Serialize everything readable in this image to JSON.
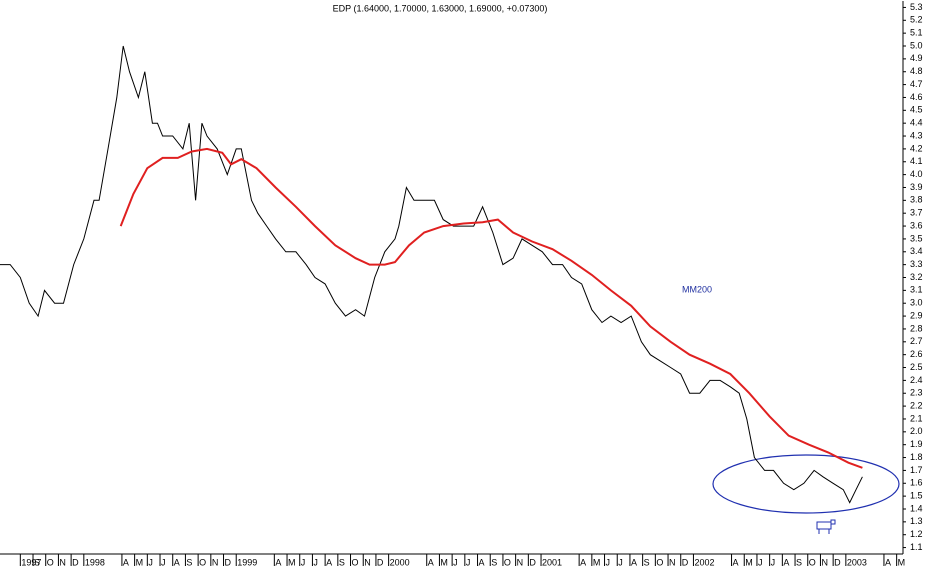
{
  "chart_data": {
    "type": "line",
    "title": "EDP (1.64000, 1.70000, 1.63000, 1.69000, +0.07300)",
    "annotations": [
      "MM200"
    ],
    "xlim": [
      -6.6,
      64.5
    ],
    "ylim": [
      1.05,
      5.35
    ],
    "xticks": [
      {
        "value": -5,
        "label": "1997"
      },
      {
        "value": -4,
        "label": "S"
      },
      {
        "value": -3,
        "label": "O"
      },
      {
        "value": -2,
        "label": "N"
      },
      {
        "value": -1,
        "label": "D"
      },
      {
        "value": 0,
        "label": "1998"
      },
      {
        "value": 3,
        "label": "A"
      },
      {
        "value": 4,
        "label": "M"
      },
      {
        "value": 5,
        "label": "J"
      },
      {
        "value": 6,
        "label": "J"
      },
      {
        "value": 7,
        "label": "A"
      },
      {
        "value": 8,
        "label": "S"
      },
      {
        "value": 9,
        "label": "O"
      },
      {
        "value": 10,
        "label": "N"
      },
      {
        "value": 11,
        "label": "D"
      },
      {
        "value": 12,
        "label": "1999"
      },
      {
        "value": 15,
        "label": "A"
      },
      {
        "value": 16,
        "label": "M"
      },
      {
        "value": 17,
        "label": "J"
      },
      {
        "value": 18,
        "label": "J"
      },
      {
        "value": 19,
        "label": "A"
      },
      {
        "value": 20,
        "label": "S"
      },
      {
        "value": 21,
        "label": "O"
      },
      {
        "value": 22,
        "label": "N"
      },
      {
        "value": 23,
        "label": "D"
      },
      {
        "value": 24,
        "label": "2000"
      },
      {
        "value": 27,
        "label": "A"
      },
      {
        "value": 28,
        "label": "M"
      },
      {
        "value": 29,
        "label": "J"
      },
      {
        "value": 30,
        "label": "J"
      },
      {
        "value": 31,
        "label": "A"
      },
      {
        "value": 32,
        "label": "S"
      },
      {
        "value": 33,
        "label": "O"
      },
      {
        "value": 34,
        "label": "N"
      },
      {
        "value": 35,
        "label": "D"
      },
      {
        "value": 36,
        "label": "2001"
      },
      {
        "value": 39,
        "label": "A"
      },
      {
        "value": 40,
        "label": "M"
      },
      {
        "value": 41,
        "label": "J"
      },
      {
        "value": 42,
        "label": "J"
      },
      {
        "value": 43,
        "label": "A"
      },
      {
        "value": 44,
        "label": "S"
      },
      {
        "value": 45,
        "label": "O"
      },
      {
        "value": 46,
        "label": "N"
      },
      {
        "value": 47,
        "label": "D"
      },
      {
        "value": 48,
        "label": "2002"
      },
      {
        "value": 51,
        "label": "A"
      },
      {
        "value": 52,
        "label": "M"
      },
      {
        "value": 53,
        "label": "J"
      },
      {
        "value": 54,
        "label": "J"
      },
      {
        "value": 55,
        "label": "A"
      },
      {
        "value": 56,
        "label": "S"
      },
      {
        "value": 57,
        "label": "O"
      },
      {
        "value": 58,
        "label": "N"
      },
      {
        "value": 59,
        "label": "D"
      },
      {
        "value": 60,
        "label": "2003"
      },
      {
        "value": 63,
        "label": "A"
      },
      {
        "value": 64,
        "label": "M"
      }
    ],
    "yticks": [
      1.1,
      1.2,
      1.3,
      1.4,
      1.5,
      1.6,
      1.7,
      1.8,
      1.9,
      {
        "value": 2.0,
        "label": "2.0"
      },
      2.1,
      2.2,
      2.3,
      2.4,
      2.5,
      2.6,
      2.7,
      2.8,
      2.9,
      {
        "value": 3.0,
        "label": "3.0"
      },
      3.1,
      3.2,
      3.3,
      3.4,
      3.5,
      3.6,
      3.7,
      3.8,
      3.9,
      {
        "value": 4.0,
        "label": "4.0"
      },
      4.1,
      4.2,
      4.3,
      4.4,
      4.5,
      4.6,
      4.7,
      4.8,
      4.9,
      {
        "value": 5.0,
        "label": "5.0"
      },
      5.1,
      5.2,
      5.3
    ],
    "grid": false,
    "series": [
      {
        "color": "#000000",
        "x": [
          -6.6,
          -5.8,
          -5.0,
          -4.3,
          -3.6,
          -3.1,
          -2.3,
          -1.6,
          -0.8,
          0,
          0.8,
          1.2,
          1.9,
          2.6,
          3.1,
          3.6,
          4.3,
          4.8,
          5.4,
          5.8,
          6.2,
          7.0,
          7.8,
          8.3,
          8.8,
          9.3,
          9.7,
          10.5,
          11.3,
          12.0,
          12.4,
          13.2,
          13.7,
          14.4,
          15.1,
          15.9,
          16.7,
          17.5,
          18.2,
          19.0,
          19.8,
          20.6,
          21.4,
          22.1,
          22.9,
          23.7,
          24.5,
          24.8,
          25.4,
          26.0,
          26.8,
          27.6,
          28.3,
          29.1,
          29.9,
          30.7,
          31.4,
          32.2,
          33.0,
          33.8,
          34.5,
          35.3,
          36.1,
          36.9,
          37.7,
          38.4,
          39.2,
          40.0,
          40.8,
          41.5,
          42.3,
          43.1,
          43.9,
          44.6,
          45.4,
          46.2,
          47.0,
          47.7,
          48.5,
          49.3,
          50.1,
          50.9,
          51.6,
          52.2,
          52.8,
          53.6,
          54.3,
          55.1,
          55.9,
          56.7,
          57.5,
          58.2,
          59.0,
          59.8,
          60.3,
          60.8,
          61.3
        ],
        "values": [
          3.3,
          3.3,
          3.2,
          3.0,
          2.9,
          3.1,
          3.0,
          3.0,
          3.3,
          3.5,
          3.8,
          3.8,
          4.2,
          4.6,
          5.0,
          4.8,
          4.6,
          4.8,
          4.4,
          4.4,
          4.3,
          4.3,
          4.2,
          4.4,
          3.8,
          4.4,
          4.3,
          4.2,
          4.0,
          4.2,
          4.2,
          3.8,
          3.7,
          3.6,
          3.5,
          3.4,
          3.4,
          3.3,
          3.2,
          3.15,
          3.0,
          2.9,
          2.95,
          2.9,
          3.2,
          3.4,
          3.5,
          3.6,
          3.9,
          3.8,
          3.8,
          3.8,
          3.65,
          3.6,
          3.6,
          3.6,
          3.75,
          3.55,
          3.3,
          3.35,
          3.5,
          3.45,
          3.4,
          3.3,
          3.3,
          3.2,
          3.15,
          2.95,
          2.85,
          2.9,
          2.85,
          2.9,
          2.7,
          2.6,
          2.55,
          2.5,
          2.45,
          2.3,
          2.3,
          2.4,
          2.4,
          2.35,
          2.3,
          2.1,
          1.8,
          1.7,
          1.7,
          1.6,
          1.55,
          1.6,
          1.7,
          1.65,
          1.6,
          1.55,
          1.45,
          1.55,
          1.65
        ]
      },
      {
        "color": "#e02020",
        "x": [
          2.9,
          3.9,
          5.0,
          6.2,
          7.4,
          8.5,
          9.7,
          10.9,
          11.6,
          12.4,
          13.6,
          15.1,
          16.7,
          18.2,
          19.8,
          21.4,
          22.5,
          23.7,
          24.5,
          25.6,
          26.8,
          28.3,
          29.9,
          31.4,
          32.6,
          33.8,
          35.3,
          36.9,
          38.4,
          40.0,
          41.5,
          43.1,
          44.6,
          46.2,
          47.7,
          49.3,
          50.9,
          52.4,
          54.0,
          55.5,
          57.1,
          58.6,
          60.2,
          61.3
        ],
        "values": [
          3.6,
          3.85,
          4.05,
          4.13,
          4.13,
          4.18,
          4.2,
          4.17,
          4.08,
          4.12,
          4.05,
          3.9,
          3.75,
          3.6,
          3.45,
          3.35,
          3.3,
          3.3,
          3.32,
          3.45,
          3.55,
          3.6,
          3.62,
          3.63,
          3.65,
          3.55,
          3.48,
          3.42,
          3.33,
          3.22,
          3.1,
          2.98,
          2.82,
          2.7,
          2.6,
          2.53,
          2.45,
          2.3,
          2.12,
          1.97,
          1.9,
          1.84,
          1.76,
          1.72
        ]
      }
    ]
  }
}
